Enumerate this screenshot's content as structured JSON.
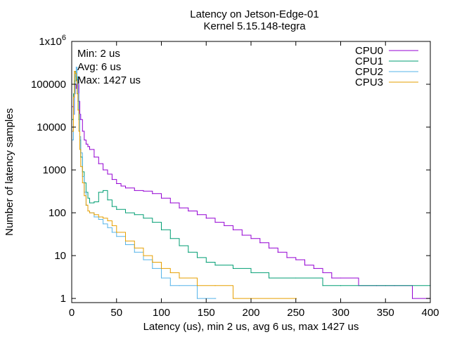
{
  "chart_data": {
    "type": "line",
    "title": "Latency on Jetson-Edge-01",
    "subtitle": "Kernel 5.15.148-tegra",
    "xlabel": "Latency (us), min 2 us, avg 6 us, max 1427 us",
    "ylabel": "Number of latency samples",
    "xlim": [
      0,
      400
    ],
    "ylim": [
      0.8,
      1000000
    ],
    "yscale": "log",
    "x_ticks": [
      0,
      50,
      100,
      150,
      200,
      250,
      300,
      350,
      400
    ],
    "x_tick_labels": [
      "0",
      "50",
      "100",
      "150",
      "200",
      "250",
      "300",
      "350",
      "400"
    ],
    "y_ticks": [
      1,
      10,
      100,
      1000,
      10000,
      100000,
      1000000
    ],
    "y_tick_labels": [
      "1",
      "10",
      "100",
      "1000",
      "10000",
      "100000",
      "1x10^6"
    ],
    "grid": false,
    "legend_position": "top-right",
    "annotations": [
      "Min: 2 us",
      "Avg: 6 us",
      "Max: 1427 us"
    ],
    "series": [
      {
        "name": "CPU0",
        "color": "#9400d3",
        "points": [
          [
            1,
            30000
          ],
          [
            2,
            20000
          ],
          [
            3,
            60000
          ],
          [
            4,
            100000
          ],
          [
            5,
            80000
          ],
          [
            6,
            130000
          ],
          [
            7,
            100000
          ],
          [
            8,
            40000
          ],
          [
            9,
            20000
          ],
          [
            10,
            15000
          ],
          [
            12,
            8000
          ],
          [
            14,
            5000
          ],
          [
            16,
            4000
          ],
          [
            18,
            3500
          ],
          [
            20,
            3000
          ],
          [
            25,
            2000
          ],
          [
            30,
            1400
          ],
          [
            35,
            1000
          ],
          [
            40,
            800
          ],
          [
            45,
            600
          ],
          [
            50,
            480
          ],
          [
            55,
            420
          ],
          [
            60,
            380
          ],
          [
            70,
            330
          ],
          [
            80,
            320
          ],
          [
            90,
            280
          ],
          [
            100,
            220
          ],
          [
            110,
            170
          ],
          [
            120,
            130
          ],
          [
            130,
            110
          ],
          [
            140,
            90
          ],
          [
            150,
            75
          ],
          [
            160,
            60
          ],
          [
            170,
            50
          ],
          [
            180,
            40
          ],
          [
            190,
            30
          ],
          [
            200,
            25
          ],
          [
            210,
            20
          ],
          [
            220,
            15
          ],
          [
            230,
            12
          ],
          [
            240,
            9
          ],
          [
            250,
            8
          ],
          [
            260,
            6
          ],
          [
            270,
            5
          ],
          [
            280,
            4
          ],
          [
            290,
            3
          ],
          [
            300,
            3
          ],
          [
            320,
            2
          ],
          [
            340,
            2
          ],
          [
            360,
            2
          ],
          [
            380,
            1
          ],
          [
            400,
            1
          ]
        ]
      },
      {
        "name": "CPU1",
        "color": "#009e73",
        "points": [
          [
            1,
            15000
          ],
          [
            2,
            60000
          ],
          [
            3,
            120000
          ],
          [
            4,
            200000
          ],
          [
            5,
            150000
          ],
          [
            6,
            90000
          ],
          [
            7,
            40000
          ],
          [
            8,
            15000
          ],
          [
            9,
            5000
          ],
          [
            10,
            2000
          ],
          [
            12,
            900
          ],
          [
            14,
            500
          ],
          [
            16,
            300
          ],
          [
            18,
            220
          ],
          [
            20,
            170
          ],
          [
            25,
            180
          ],
          [
            30,
            300
          ],
          [
            35,
            330
          ],
          [
            40,
            200
          ],
          [
            45,
            140
          ],
          [
            50,
            120
          ],
          [
            60,
            100
          ],
          [
            70,
            90
          ],
          [
            80,
            75
          ],
          [
            90,
            60
          ],
          [
            100,
            40
          ],
          [
            110,
            25
          ],
          [
            120,
            17
          ],
          [
            130,
            12
          ],
          [
            140,
            9
          ],
          [
            150,
            7
          ],
          [
            160,
            6
          ],
          [
            180,
            5
          ],
          [
            200,
            4
          ],
          [
            220,
            3
          ],
          [
            250,
            3
          ],
          [
            280,
            2
          ],
          [
            300,
            2
          ],
          [
            350,
            2
          ],
          [
            400,
            2
          ]
        ]
      },
      {
        "name": "CPU2",
        "color": "#56b4e9",
        "points": [
          [
            1,
            5000
          ],
          [
            2,
            20000
          ],
          [
            3,
            60000
          ],
          [
            4,
            180000
          ],
          [
            5,
            250000
          ],
          [
            6,
            150000
          ],
          [
            7,
            60000
          ],
          [
            8,
            20000
          ],
          [
            9,
            6000
          ],
          [
            10,
            2500
          ],
          [
            12,
            700
          ],
          [
            14,
            300
          ],
          [
            16,
            150
          ],
          [
            18,
            110
          ],
          [
            20,
            100
          ],
          [
            25,
            80
          ],
          [
            30,
            70
          ],
          [
            35,
            55
          ],
          [
            40,
            45
          ],
          [
            45,
            35
          ],
          [
            50,
            28
          ],
          [
            60,
            18
          ],
          [
            70,
            12
          ],
          [
            80,
            8
          ],
          [
            90,
            5
          ],
          [
            100,
            3
          ],
          [
            110,
            2
          ],
          [
            120,
            2
          ],
          [
            140,
            1
          ],
          [
            160,
            1
          ]
        ]
      },
      {
        "name": "CPU3",
        "color": "#e69f00",
        "points": [
          [
            1,
            8000
          ],
          [
            2,
            50000
          ],
          [
            3,
            200000
          ],
          [
            4,
            180000
          ],
          [
            5,
            120000
          ],
          [
            6,
            60000
          ],
          [
            7,
            25000
          ],
          [
            8,
            8000
          ],
          [
            9,
            3000
          ],
          [
            10,
            1200
          ],
          [
            12,
            500
          ],
          [
            14,
            250
          ],
          [
            16,
            150
          ],
          [
            18,
            110
          ],
          [
            20,
            100
          ],
          [
            25,
            90
          ],
          [
            30,
            80
          ],
          [
            35,
            75
          ],
          [
            40,
            65
          ],
          [
            45,
            50
          ],
          [
            50,
            35
          ],
          [
            60,
            22
          ],
          [
            70,
            15
          ],
          [
            80,
            10
          ],
          [
            90,
            7
          ],
          [
            100,
            5
          ],
          [
            110,
            4
          ],
          [
            120,
            3
          ],
          [
            140,
            2
          ],
          [
            160,
            2
          ],
          [
            180,
            1
          ],
          [
            200,
            1
          ],
          [
            250,
            1
          ]
        ]
      }
    ]
  }
}
